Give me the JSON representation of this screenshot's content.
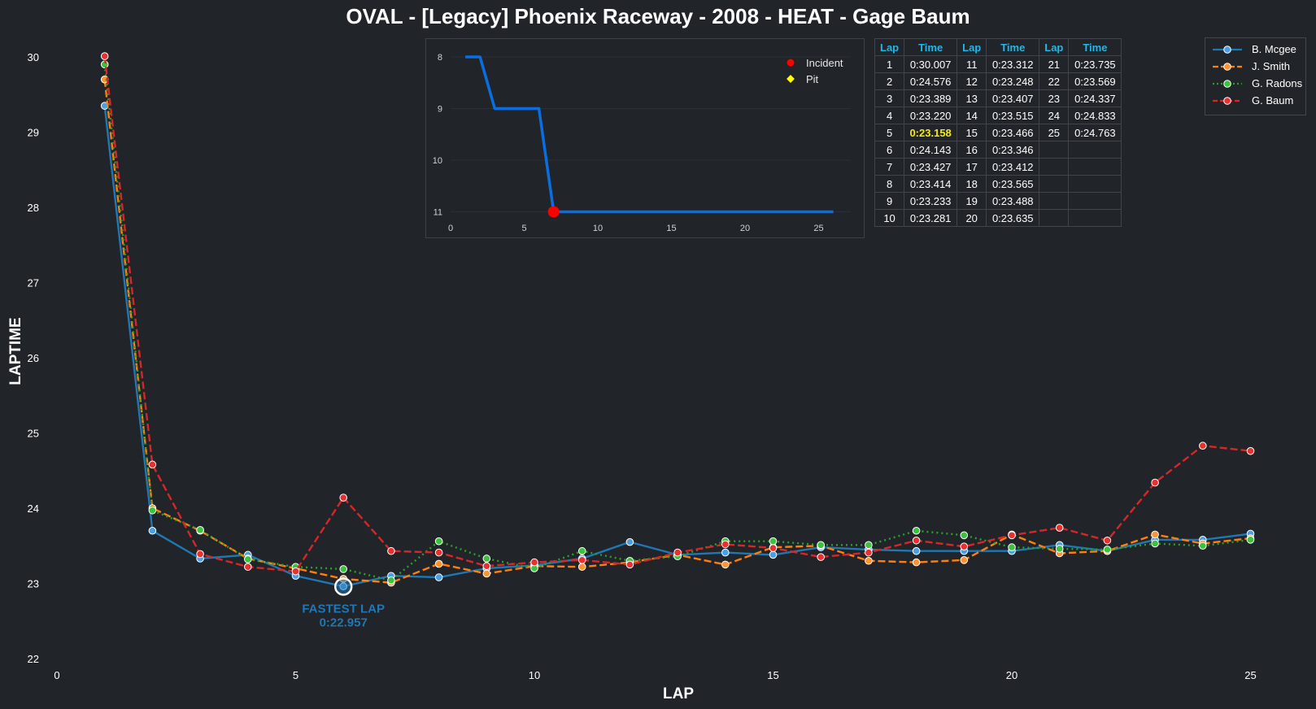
{
  "chart_data": {
    "type": "line",
    "title": "OVAL - [Legacy] Phoenix Raceway - 2008 - HEAT - Gage Baum",
    "xlabel": "LAP",
    "ylabel": "LAPTIME",
    "xlim": [
      0,
      25.5
    ],
    "ylim": [
      22,
      30.2
    ],
    "xticks": [
      0,
      5,
      10,
      15,
      20,
      25
    ],
    "yticks": [
      22,
      23,
      24,
      25,
      26,
      27,
      28,
      29,
      30
    ],
    "grid": false,
    "legend_position": "top-right",
    "series": [
      {
        "name": "B. Mcgee",
        "color": "#1f77b4",
        "dash": "solid",
        "marker_color": "#4aa0e6",
        "x": [
          1,
          2,
          3,
          4,
          5,
          6,
          7,
          8,
          9,
          10,
          11,
          12,
          13,
          14,
          15,
          16,
          17,
          18,
          19,
          20,
          21,
          22,
          23,
          24,
          25
        ],
        "y": [
          29.35,
          23.7,
          23.33,
          23.38,
          23.1,
          22.96,
          23.1,
          23.08,
          23.2,
          23.24,
          23.33,
          23.55,
          23.38,
          23.41,
          23.38,
          23.48,
          23.45,
          23.43,
          23.43,
          23.43,
          23.51,
          23.43,
          23.58,
          23.58,
          23.66
        ]
      },
      {
        "name": "J. Smith",
        "color": "#ff7f0e",
        "dash": "dashed",
        "marker_color": "#ff9330",
        "x": [
          1,
          2,
          3,
          4,
          5,
          6,
          7,
          8,
          9,
          10,
          11,
          12,
          13,
          14,
          15,
          16,
          17,
          18,
          19,
          20,
          21,
          22,
          23,
          24,
          25
        ],
        "y": [
          29.7,
          24.0,
          23.7,
          23.33,
          23.2,
          23.06,
          23.01,
          23.26,
          23.13,
          23.23,
          23.22,
          23.28,
          23.38,
          23.25,
          23.48,
          23.5,
          23.3,
          23.28,
          23.31,
          23.65,
          23.4,
          23.43,
          23.65,
          23.53,
          23.6
        ]
      },
      {
        "name": "G. Radons",
        "color": "#2ca02c",
        "dash": "dotted",
        "marker_color": "#3cc23c",
        "x": [
          1,
          2,
          3,
          4,
          5,
          6,
          7,
          8,
          9,
          10,
          11,
          12,
          13,
          14,
          15,
          16,
          17,
          18,
          19,
          20,
          21,
          22,
          23,
          24,
          25
        ],
        "y": [
          29.9,
          23.97,
          23.71,
          23.32,
          23.22,
          23.19,
          23.04,
          23.56,
          23.33,
          23.2,
          23.43,
          23.3,
          23.36,
          23.56,
          23.56,
          23.51,
          23.51,
          23.7,
          23.64,
          23.48,
          23.46,
          23.45,
          23.53,
          23.5,
          23.58
        ]
      },
      {
        "name": "G. Baum",
        "color": "#d62728",
        "dash": "dashed",
        "marker_color": "#e83030",
        "x": [
          1,
          2,
          3,
          4,
          5,
          6,
          7,
          8,
          9,
          10,
          11,
          12,
          13,
          14,
          15,
          16,
          17,
          18,
          19,
          20,
          21,
          22,
          23,
          24,
          25
        ],
        "y": [
          30.01,
          24.58,
          23.39,
          23.22,
          23.16,
          24.14,
          23.43,
          23.41,
          23.23,
          23.28,
          23.31,
          23.25,
          23.41,
          23.52,
          23.47,
          23.35,
          23.41,
          23.57,
          23.49,
          23.64,
          23.74,
          23.57,
          24.34,
          24.83,
          24.76
        ]
      }
    ],
    "annotation": {
      "label": "FASTEST LAP",
      "value": "0:22.957",
      "x": 6,
      "y": 22.957
    },
    "inset": {
      "type": "line",
      "title": "",
      "xlim": [
        0,
        27
      ],
      "ylim": [
        11,
        8
      ],
      "xticks": [
        0,
        5,
        10,
        15,
        20,
        25
      ],
      "yticks": [
        8,
        9,
        10,
        11
      ],
      "grid": true,
      "line_color": "#0a6ee0",
      "x": [
        1,
        2,
        3,
        4,
        5,
        6,
        7,
        8,
        9,
        10,
        11,
        12,
        13,
        14,
        15,
        16,
        17,
        18,
        19,
        20,
        21,
        22,
        23,
        24,
        25,
        26
      ],
      "y": [
        8,
        8,
        9,
        9,
        9,
        9,
        11,
        11,
        11,
        11,
        11,
        11,
        11,
        11,
        11,
        11,
        11,
        11,
        11,
        11,
        11,
        11,
        11,
        11,
        11,
        11
      ],
      "incidents": [
        {
          "x": 7,
          "y": 11
        }
      ],
      "pits": [],
      "legend": [
        {
          "label": "Incident",
          "color": "#ff0000",
          "marker": "circle"
        },
        {
          "label": "Pit",
          "color": "#ffff00",
          "marker": "diamond"
        }
      ]
    },
    "laps_table": {
      "headers": [
        "Lap",
        "Time",
        "Lap",
        "Time",
        "Lap",
        "Time"
      ],
      "best_lap": 5,
      "rows": [
        [
          [
            "1",
            "0:30.007"
          ],
          [
            "11",
            "0:23.312"
          ],
          [
            "21",
            "0:23.735"
          ]
        ],
        [
          [
            "2",
            "0:24.576"
          ],
          [
            "12",
            "0:23.248"
          ],
          [
            "22",
            "0:23.569"
          ]
        ],
        [
          [
            "3",
            "0:23.389"
          ],
          [
            "13",
            "0:23.407"
          ],
          [
            "23",
            "0:24.337"
          ]
        ],
        [
          [
            "4",
            "0:23.220"
          ],
          [
            "14",
            "0:23.515"
          ],
          [
            "24",
            "0:24.833"
          ]
        ],
        [
          [
            "5",
            "0:23.158"
          ],
          [
            "15",
            "0:23.466"
          ],
          [
            "25",
            "0:24.763"
          ]
        ],
        [
          [
            "6",
            "0:24.143"
          ],
          [
            "16",
            "0:23.346"
          ],
          [
            "",
            ""
          ]
        ],
        [
          [
            "7",
            "0:23.427"
          ],
          [
            "17",
            "0:23.412"
          ],
          [
            "",
            ""
          ]
        ],
        [
          [
            "8",
            "0:23.414"
          ],
          [
            "18",
            "0:23.565"
          ],
          [
            "",
            ""
          ]
        ],
        [
          [
            "9",
            "0:23.233"
          ],
          [
            "19",
            "0:23.488"
          ],
          [
            "",
            ""
          ]
        ],
        [
          [
            "10",
            "0:23.281"
          ],
          [
            "20",
            "0:23.635"
          ],
          [
            "",
            ""
          ]
        ]
      ]
    }
  }
}
